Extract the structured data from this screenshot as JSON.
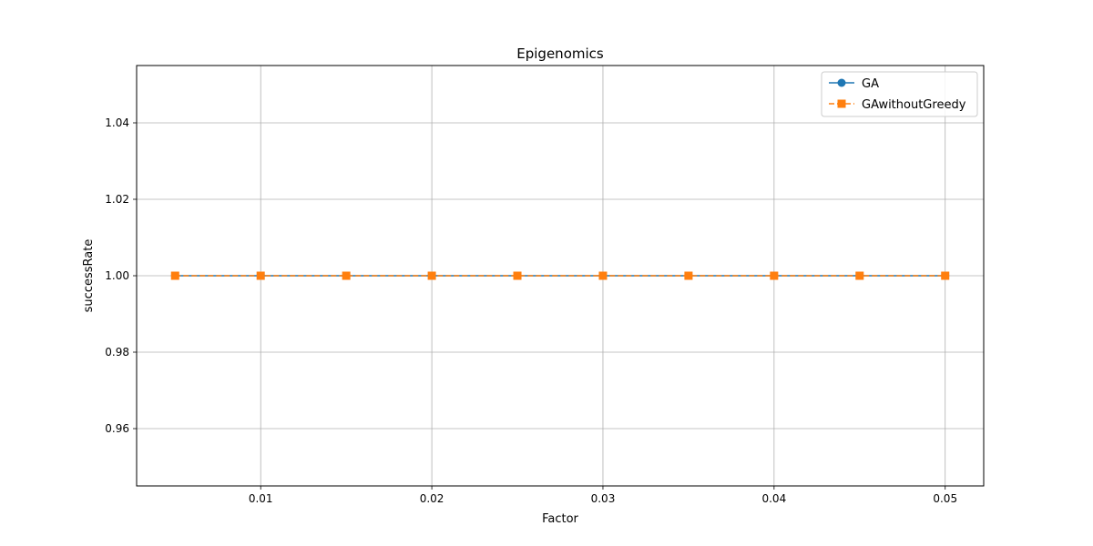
{
  "chart_data": {
    "type": "line",
    "title": "Epigenomics",
    "xlabel": "Factor",
    "ylabel": "successRate",
    "x": [
      0.005,
      0.01,
      0.015,
      0.02,
      0.025,
      0.03,
      0.035,
      0.04,
      0.045,
      0.05
    ],
    "x_ticks": [
      "0.01",
      "0.02",
      "0.03",
      "0.04",
      "0.05"
    ],
    "y_ticks": [
      "0.96",
      "0.98",
      "1.00",
      "1.02",
      "1.04"
    ],
    "xlim": [
      0.00275,
      0.05225
    ],
    "ylim": [
      0.945,
      1.055
    ],
    "grid": true,
    "legend_position": "top-right",
    "series": [
      {
        "name": "GA",
        "values": [
          1.0,
          1.0,
          1.0,
          1.0,
          1.0,
          1.0,
          1.0,
          1.0,
          1.0,
          1.0
        ],
        "color": "#1f77b4",
        "marker": "circle",
        "line_style": "solid"
      },
      {
        "name": "GAwithoutGreedy",
        "values": [
          1.0,
          1.0,
          1.0,
          1.0,
          1.0,
          1.0,
          1.0,
          1.0,
          1.0,
          1.0
        ],
        "color": "#ff7f0e",
        "marker": "square",
        "line_style": "dashed"
      }
    ]
  }
}
